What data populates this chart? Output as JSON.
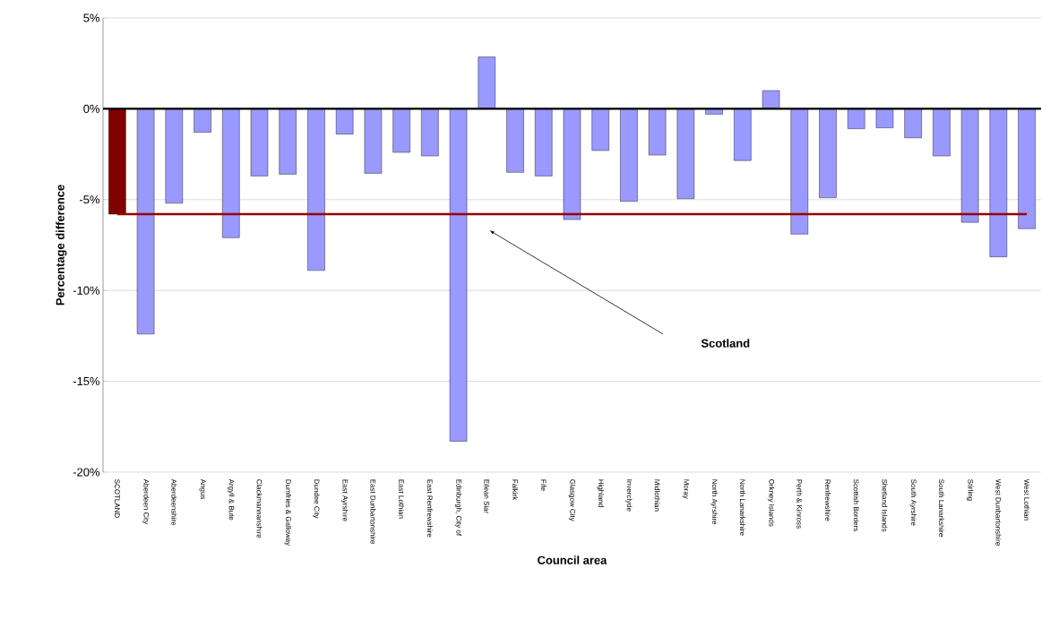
{
  "chart_data": {
    "type": "bar",
    "xlabel": "Council area",
    "ylabel": "Percentage difference",
    "categories": [
      "SCOTLAND",
      "Aberdeen City",
      "Aberdeenshire",
      "Angus",
      "Argyll & Bute",
      "Clackmannanshire",
      "Dumfries & Galloway",
      "Dundee City",
      "East Ayrshire",
      "East Dunbartonshire",
      "East Lothian",
      "East Renfrewshire",
      "Edinburgh, City of",
      "Eilean Siar",
      "Falkirk",
      "Fife",
      "Glasgow City",
      "Highland",
      "Inverclyde",
      "Midlothian",
      "Moray",
      "North Ayrshire",
      "North Lanarkshire",
      "Orkney Islands",
      "Perth & Kinross",
      "Renfrewshire",
      "Scottish Borders",
      "Shetland Islands",
      "South Ayrshire",
      "South Lanarkshire",
      "Stirling",
      "West Dunbartonshire",
      "West Lothian"
    ],
    "values": [
      -5.8,
      -12.4,
      -5.2,
      -1.3,
      -7.1,
      -3.7,
      -3.6,
      -8.9,
      -1.4,
      -3.55,
      -2.4,
      -2.6,
      -18.3,
      2.85,
      -3.5,
      -3.7,
      -6.1,
      -2.3,
      -5.1,
      -2.55,
      -4.95,
      -0.3,
      -2.85,
      1.0,
      -6.9,
      -4.9,
      -1.1,
      -1.05,
      -1.6,
      -2.6,
      -6.25,
      -8.15,
      -6.6
    ],
    "colors": [
      "#800000",
      "#9999ff",
      "#9999ff",
      "#9999ff",
      "#9999ff",
      "#9999ff",
      "#9999ff",
      "#9999ff",
      "#9999ff",
      "#9999ff",
      "#9999ff",
      "#9999ff",
      "#9999ff",
      "#9999ff",
      "#9999ff",
      "#9999ff",
      "#9999ff",
      "#9999ff",
      "#9999ff",
      "#9999ff",
      "#9999ff",
      "#9999ff",
      "#9999ff",
      "#9999ff",
      "#9999ff",
      "#9999ff",
      "#9999ff",
      "#9999ff",
      "#9999ff",
      "#9999ff",
      "#9999ff",
      "#9999ff",
      "#9999ff"
    ],
    "ylim": [
      -20,
      5
    ],
    "yticks": [
      {
        "value": -20,
        "label": "-20%"
      },
      {
        "value": -15,
        "label": "-15%"
      },
      {
        "value": -10,
        "label": "-10%"
      },
      {
        "value": -5,
        "label": "-5%"
      },
      {
        "value": 0,
        "label": "0%"
      },
      {
        "value": 5,
        "label": "5%"
      }
    ],
    "ref_lines": [
      {
        "axis": "y",
        "value": -5.8,
        "color": "#990000"
      }
    ],
    "annotations": [
      "Scotland"
    ],
    "grid": "y"
  }
}
